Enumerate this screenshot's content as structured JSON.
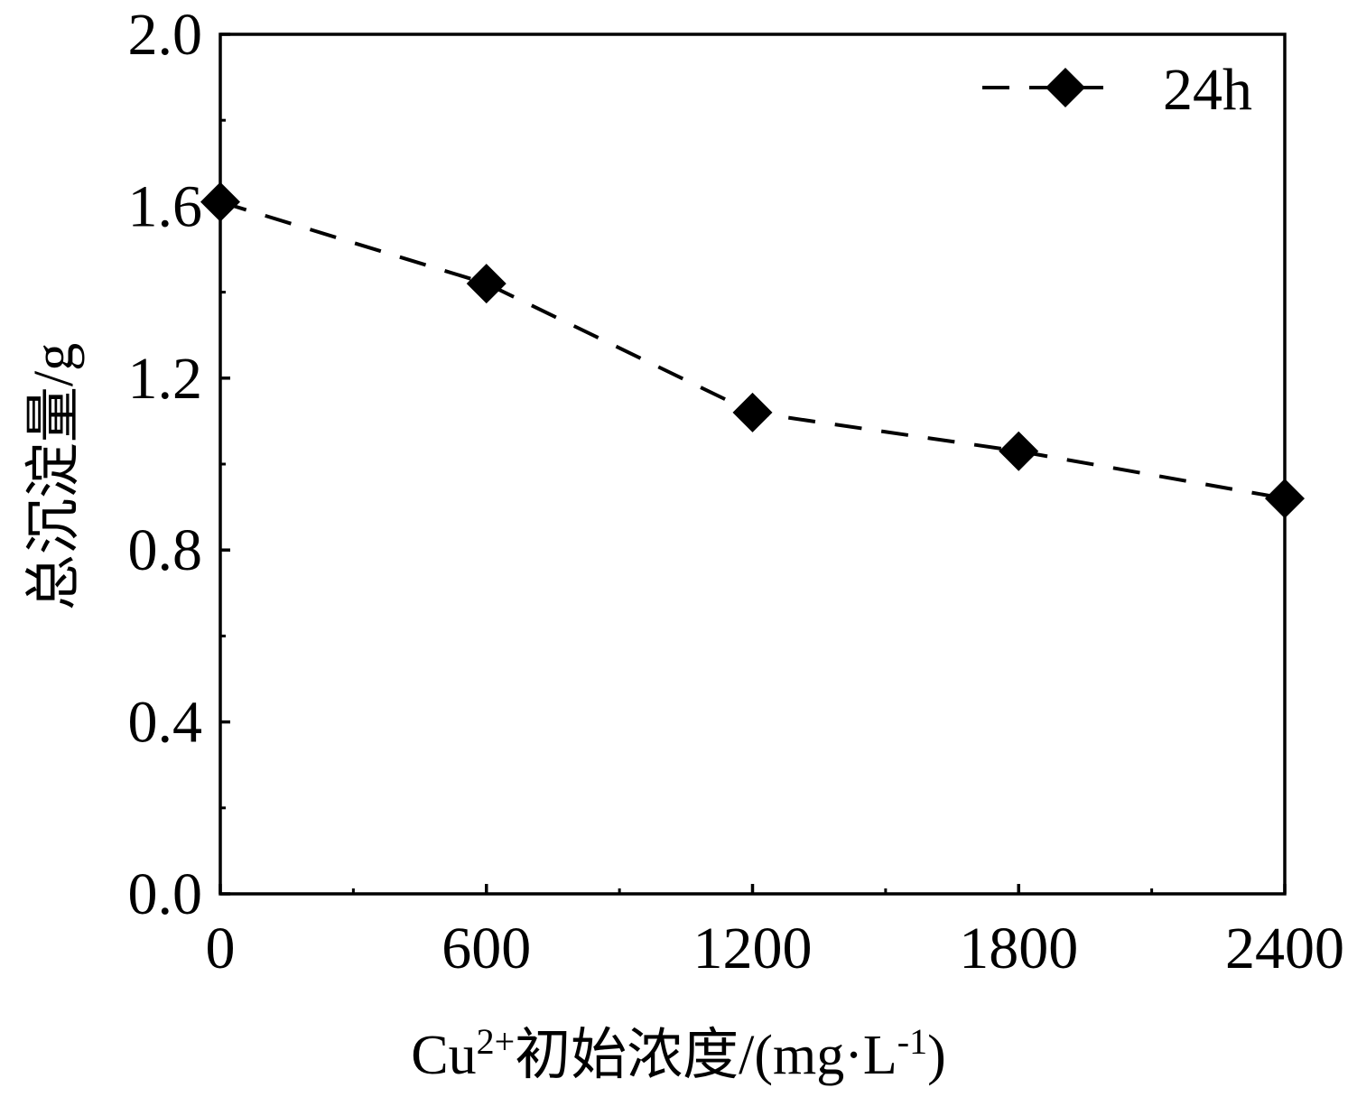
{
  "chart_data": {
    "type": "line",
    "x": [
      0,
      600,
      1200,
      1800,
      2400
    ],
    "series": [
      {
        "name": "24h",
        "values": [
          1.61,
          1.42,
          1.12,
          1.03,
          0.92
        ],
        "line_style": "dashed",
        "marker": "diamond",
        "color": "#000000"
      }
    ],
    "x_ticks": [
      "0",
      "600",
      "1200",
      "1800",
      "2400"
    ],
    "y_ticks": [
      "0.0",
      "0.4",
      "0.8",
      "1.2",
      "1.6",
      "2.0"
    ],
    "xlabel": {
      "base": "Cu",
      "sup": "2+",
      "mid": "初始浓度/(mg·L",
      "sup2": "-1",
      "end": ")"
    },
    "ylabel": "总沉淀量/g",
    "xlim": [
      0,
      2400
    ],
    "ylim": [
      0,
      2.0
    ],
    "grid": false,
    "legend_position": "top-right"
  }
}
